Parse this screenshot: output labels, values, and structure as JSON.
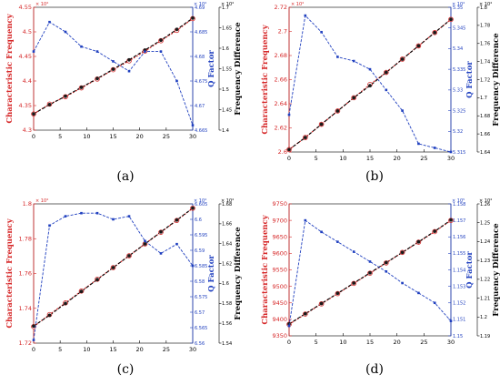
{
  "colors": {
    "red": "#d62728",
    "blue": "#1f3fbf",
    "black": "#000000",
    "point_fill": "#1a1a1a",
    "q_line": "#1f3fbf"
  },
  "chart_data": [
    {
      "panel_label": "(a)",
      "type": "line",
      "x": [
        0,
        3,
        6,
        9,
        12,
        15,
        18,
        21,
        24,
        27,
        30
      ],
      "xticks": [
        0,
        5,
        10,
        15,
        20,
        25,
        30
      ],
      "xlim": [
        0,
        30
      ],
      "left_axis": {
        "label": "Characteristic Frequency",
        "exponent": "× 10⁴",
        "ylim": [
          4.3,
          4.55
        ],
        "ticks": [
          4.3,
          4.35,
          4.4,
          4.45,
          4.5,
          4.55
        ],
        "tick_labels": [
          "4.3",
          "4.35",
          "4.4",
          "4.45",
          "4.5",
          "4.55"
        ]
      },
      "q_axis": {
        "label": "Q Factor",
        "exponent": "× 10⁴",
        "ylim": [
          4.665,
          4.69
        ],
        "ticks": [
          4.665,
          4.67,
          4.675,
          4.68,
          4.685,
          4.69
        ],
        "tick_labels": [
          "4.665",
          "4.67",
          "4.675",
          "4.68",
          "4.685",
          "4.69"
        ]
      },
      "diff_axis": {
        "label": "Frequency Difference",
        "exponent": "× 10⁴",
        "ylim": [
          1.4,
          1.7
        ],
        "ticks": [
          1.4,
          1.45,
          1.5,
          1.55,
          1.6,
          1.65,
          1.7
        ],
        "tick_labels": [
          "1.4",
          "1.45",
          "1.5",
          "1.55",
          "1.6",
          "1.65",
          "1.7"
        ]
      },
      "series": [
        {
          "values": [
            4.333,
            4.353,
            4.368,
            4.386,
            4.404,
            4.423,
            4.441,
            4.461,
            4.482,
            4.503,
            4.527
          ]
        },
        {
          "values": [
            4.333,
            4.352,
            4.369,
            4.387,
            4.405,
            4.424,
            4.443,
            4.463,
            4.483,
            4.505,
            4.528
          ]
        },
        {
          "values": [
            4.681,
            4.687,
            4.685,
            4.682,
            4.681,
            4.679,
            4.677,
            4.681,
            4.681,
            4.675,
            4.666
          ]
        }
      ],
      "style": {
        "q_x": [
          0,
          3,
          6,
          9,
          12,
          15,
          18,
          21,
          24,
          27,
          30
        ],
        "q_values": [
          4.681,
          4.687,
          4.685,
          4.682,
          4.681,
          4.679,
          4.677,
          4.681,
          4.681,
          4.675,
          4.666
        ]
      }
    },
    {
      "panel_label": "(b)",
      "type": "line",
      "x": [
        0,
        3,
        6,
        9,
        12,
        15,
        18,
        21,
        24,
        27,
        30
      ],
      "xticks": [
        0,
        5,
        10,
        15,
        20,
        25,
        30
      ],
      "xlim": [
        0,
        30
      ],
      "left_axis": {
        "label": "Characteristic Frequency",
        "exponent": "× 10⁴",
        "ylim": [
          2.6,
          2.72
        ],
        "ticks": [
          2.6,
          2.62,
          2.64,
          2.66,
          2.68,
          2.7,
          2.72
        ],
        "tick_labels": [
          "2.6",
          "2.62",
          "2.64",
          "2.66",
          "2.68",
          "2.7",
          "2.72"
        ]
      },
      "q_axis": {
        "label": "Q Factor",
        "exponent": "× 10⁴",
        "ylim": [
          5.315,
          5.35
        ],
        "ticks": [
          5.315,
          5.32,
          5.325,
          5.33,
          5.335,
          5.34,
          5.345,
          5.35
        ],
        "tick_labels": [
          "5.315",
          "5.32",
          "5.325",
          "5.33",
          "5.335",
          "5.34",
          "5.345",
          "5.35"
        ]
      },
      "diff_axis": {
        "label": "Frequency Difference",
        "exponent": "× 10⁴",
        "ylim": [
          1.64,
          1.8
        ],
        "ticks": [
          1.64,
          1.66,
          1.68,
          1.7,
          1.72,
          1.74,
          1.76,
          1.78,
          1.8
        ],
        "tick_labels": [
          "1.64",
          "1.66",
          "1.68",
          "1.7",
          "1.72",
          "1.74",
          "1.76",
          "1.78",
          "1.8"
        ]
      },
      "series": [
        {
          "values": [
            2.602,
            2.612,
            2.623,
            2.634,
            2.645,
            2.656,
            2.666,
            2.677,
            2.688,
            2.699,
            2.71
          ]
        },
        {
          "values": [
            2.602,
            2.612,
            2.623,
            2.634,
            2.645,
            2.655,
            2.666,
            2.677,
            2.688,
            2.699,
            2.71
          ]
        },
        {
          "values": [
            5.324,
            5.348,
            5.344,
            5.338,
            5.337,
            5.335,
            5.33,
            5.325,
            5.317,
            5.316,
            5.315
          ]
        }
      ]
    },
    {
      "panel_label": "(c)",
      "type": "line",
      "x": [
        0,
        3,
        6,
        9,
        12,
        15,
        18,
        21,
        24,
        27,
        30
      ],
      "xticks": [
        0,
        5,
        10,
        15,
        20,
        25,
        30
      ],
      "xlim": [
        0,
        30
      ],
      "left_axis": {
        "label": "Characteristic Frequency",
        "exponent": "× 10⁴",
        "ylim": [
          1.72,
          1.8
        ],
        "ticks": [
          1.72,
          1.74,
          1.76,
          1.78,
          1.8
        ],
        "tick_labels": [
          "1.72",
          "1.74",
          "1.76",
          "1.78",
          "1.8"
        ]
      },
      "q_axis": {
        "label": "Q Factor",
        "exponent": "× 10⁴",
        "ylim": [
          6.56,
          6.605
        ],
        "ticks": [
          6.56,
          6.565,
          6.57,
          6.575,
          6.58,
          6.585,
          6.59,
          6.595,
          6.6,
          6.605
        ],
        "tick_labels": [
          "6.56",
          "6.565",
          "6.57",
          "6.575",
          "6.58",
          "6.585",
          "6.59",
          "6.595",
          "6.6",
          "6.605"
        ]
      },
      "diff_axis": {
        "label": "Frequency Difference",
        "exponent": "× 10⁴",
        "ylim": [
          1.54,
          1.68
        ],
        "ticks": [
          1.54,
          1.56,
          1.58,
          1.6,
          1.62,
          1.64,
          1.66,
          1.68
        ],
        "tick_labels": [
          "1.54",
          "1.56",
          "1.58",
          "1.6",
          "1.62",
          "1.64",
          "1.66",
          "1.68"
        ]
      },
      "series": [
        {
          "values": [
            1.7295,
            1.7364,
            1.7431,
            1.7499,
            1.7567,
            1.7634,
            1.7702,
            1.777,
            1.7837,
            1.7905,
            1.7975
          ]
        },
        {
          "values": [
            1.7298,
            1.736,
            1.7428,
            1.7497,
            1.7565,
            1.7634,
            1.7702,
            1.777,
            1.7839,
            1.7907,
            1.7976
          ]
        },
        {
          "values": [
            6.561,
            6.598,
            6.601,
            6.602,
            6.602,
            6.6,
            6.601,
            6.593,
            6.589,
            6.592,
            6.585
          ]
        }
      ]
    },
    {
      "panel_label": "(d)",
      "type": "line",
      "x": [
        0,
        3,
        6,
        9,
        12,
        15,
        18,
        21,
        24,
        27,
        30
      ],
      "xticks": [
        0,
        5,
        10,
        15,
        20,
        25,
        30
      ],
      "xlim": [
        0,
        30
      ],
      "left_axis": {
        "label": "Characteristic Frequency",
        "exponent": "",
        "ylim": [
          9350,
          9750
        ],
        "ticks": [
          9350,
          9400,
          9450,
          9500,
          9550,
          9600,
          9650,
          9700,
          9750
        ],
        "tick_labels": [
          "9350",
          "9400",
          "9450",
          "9500",
          "9550",
          "9600",
          "9650",
          "9700",
          "9750"
        ]
      },
      "q_axis": {
        "label": "Q Factor",
        "exponent": "× 10⁵",
        "ylim": [
          1.15,
          1.158
        ],
        "ticks": [
          1.15,
          1.151,
          1.152,
          1.153,
          1.154,
          1.155,
          1.156,
          1.157,
          1.158
        ],
        "tick_labels": [
          "1.15",
          "1.151",
          "1.152",
          "1.153",
          "1.154",
          "1.155",
          "1.156",
          "1.157",
          "1.158"
        ]
      },
      "diff_axis": {
        "label": "Frequency Difference",
        "exponent": "× 10⁴",
        "ylim": [
          1.19,
          1.26
        ],
        "ticks": [
          1.19,
          1.2,
          1.21,
          1.22,
          1.23,
          1.24,
          1.25,
          1.26
        ],
        "tick_labels": [
          "1.19",
          "1.2",
          "1.21",
          "1.22",
          "1.23",
          "1.24",
          "1.25",
          "1.26"
        ]
      },
      "series": [
        {
          "values": [
            9385,
            9416,
            9447,
            9478,
            9509,
            9540,
            9571,
            9603,
            9634,
            9666,
            9700
          ]
        },
        {
          "values": [
            9386,
            9417,
            9448,
            9479,
            9510,
            9541,
            9572,
            9603,
            9635,
            9667,
            9701
          ]
        },
        {
          "values": [
            1.1506,
            1.157,
            1.1563,
            1.1557,
            1.1551,
            1.1545,
            1.1539,
            1.1532,
            1.1526,
            1.152,
            1.1509
          ]
        }
      ]
    }
  ]
}
